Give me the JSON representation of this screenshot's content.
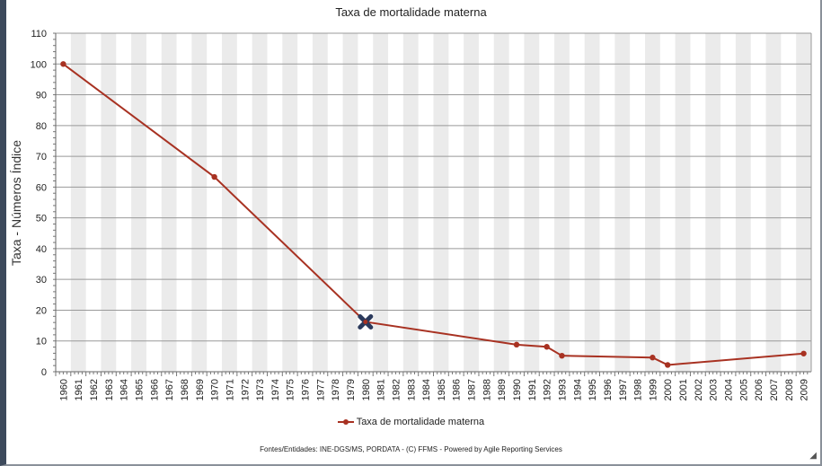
{
  "chart_data": {
    "type": "line",
    "title": "Taxa de mortalidade materna",
    "ylabel": "Taxa - Números Índice",
    "xlabel": "",
    "ylim": [
      0,
      110
    ],
    "yticks": [
      0,
      10,
      20,
      30,
      40,
      50,
      60,
      70,
      80,
      90,
      100,
      110
    ],
    "categories": [
      "1960",
      "1961",
      "1962",
      "1963",
      "1964",
      "1965",
      "1966",
      "1967",
      "1968",
      "1969",
      "1970",
      "1971",
      "1972",
      "1973",
      "1974",
      "1975",
      "1976",
      "1977",
      "1978",
      "1979",
      "1980",
      "1981",
      "1982",
      "1983",
      "1984",
      "1985",
      "1986",
      "1987",
      "1988",
      "1989",
      "1990",
      "1991",
      "1992",
      "1993",
      "1994",
      "1995",
      "1996",
      "1997",
      "1998",
      "1999",
      "2000",
      "2001",
      "2002",
      "2003",
      "2004",
      "2005",
      "2006",
      "2007",
      "2008",
      "2009"
    ],
    "series": [
      {
        "name": "Taxa de mortalidade materna",
        "color": "#a83222",
        "points": [
          [
            "1960",
            100
          ],
          [
            "1970",
            63.3
          ],
          [
            "1980",
            16.2
          ],
          [
            "1990",
            8.8
          ],
          [
            "1992",
            8.1
          ],
          [
            "1993",
            5.2
          ],
          [
            "1999",
            4.6
          ],
          [
            "2000",
            2.2
          ],
          [
            "2009",
            5.9
          ]
        ]
      }
    ],
    "highlight_marker": {
      "x": "1980",
      "color": "#2b3a5c"
    },
    "grid": true,
    "legend": "bottom"
  },
  "footer": "Fontes/Entidades: INE-DGS/MS, PORDATA - (C) FFMS - Powered by Agile Reporting Services"
}
